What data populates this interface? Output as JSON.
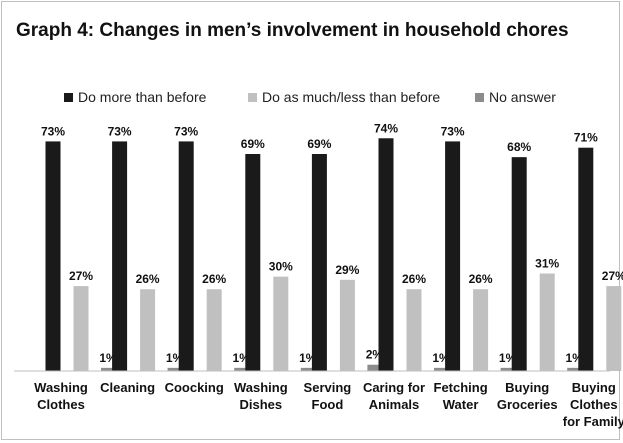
{
  "chart_data": {
    "type": "bar",
    "title": "Graph 4: Changes in men’s involvement in household chores",
    "categories": [
      [
        "Washing",
        "Clothes"
      ],
      [
        "Cleaning"
      ],
      [
        "Coocking"
      ],
      [
        "Washing",
        "Dishes"
      ],
      [
        "Serving",
        "Food"
      ],
      [
        "Caring for",
        "Animals"
      ],
      [
        "Fetching",
        "Water"
      ],
      [
        "Buying",
        "Groceries"
      ],
      [
        "Buying",
        "Clothes",
        "for Family"
      ]
    ],
    "series": [
      {
        "name": "Do more than before",
        "color": "#1a1a1a",
        "values": [
          73,
          73,
          73,
          69,
          69,
          74,
          73,
          68,
          71
        ]
      },
      {
        "name": "Do as much/less than before",
        "color": "#c0c0c0",
        "values": [
          27,
          26,
          26,
          30,
          29,
          26,
          26,
          31,
          27
        ]
      },
      {
        "name": "No answer",
        "color": "#8c8c8c",
        "values": [
          1,
          1,
          1,
          1,
          2,
          1,
          1,
          1,
          2
        ]
      }
    ],
    "value_suffix": "%",
    "ylim": [
      0,
      80
    ],
    "grid": false,
    "legend_position": "top"
  }
}
